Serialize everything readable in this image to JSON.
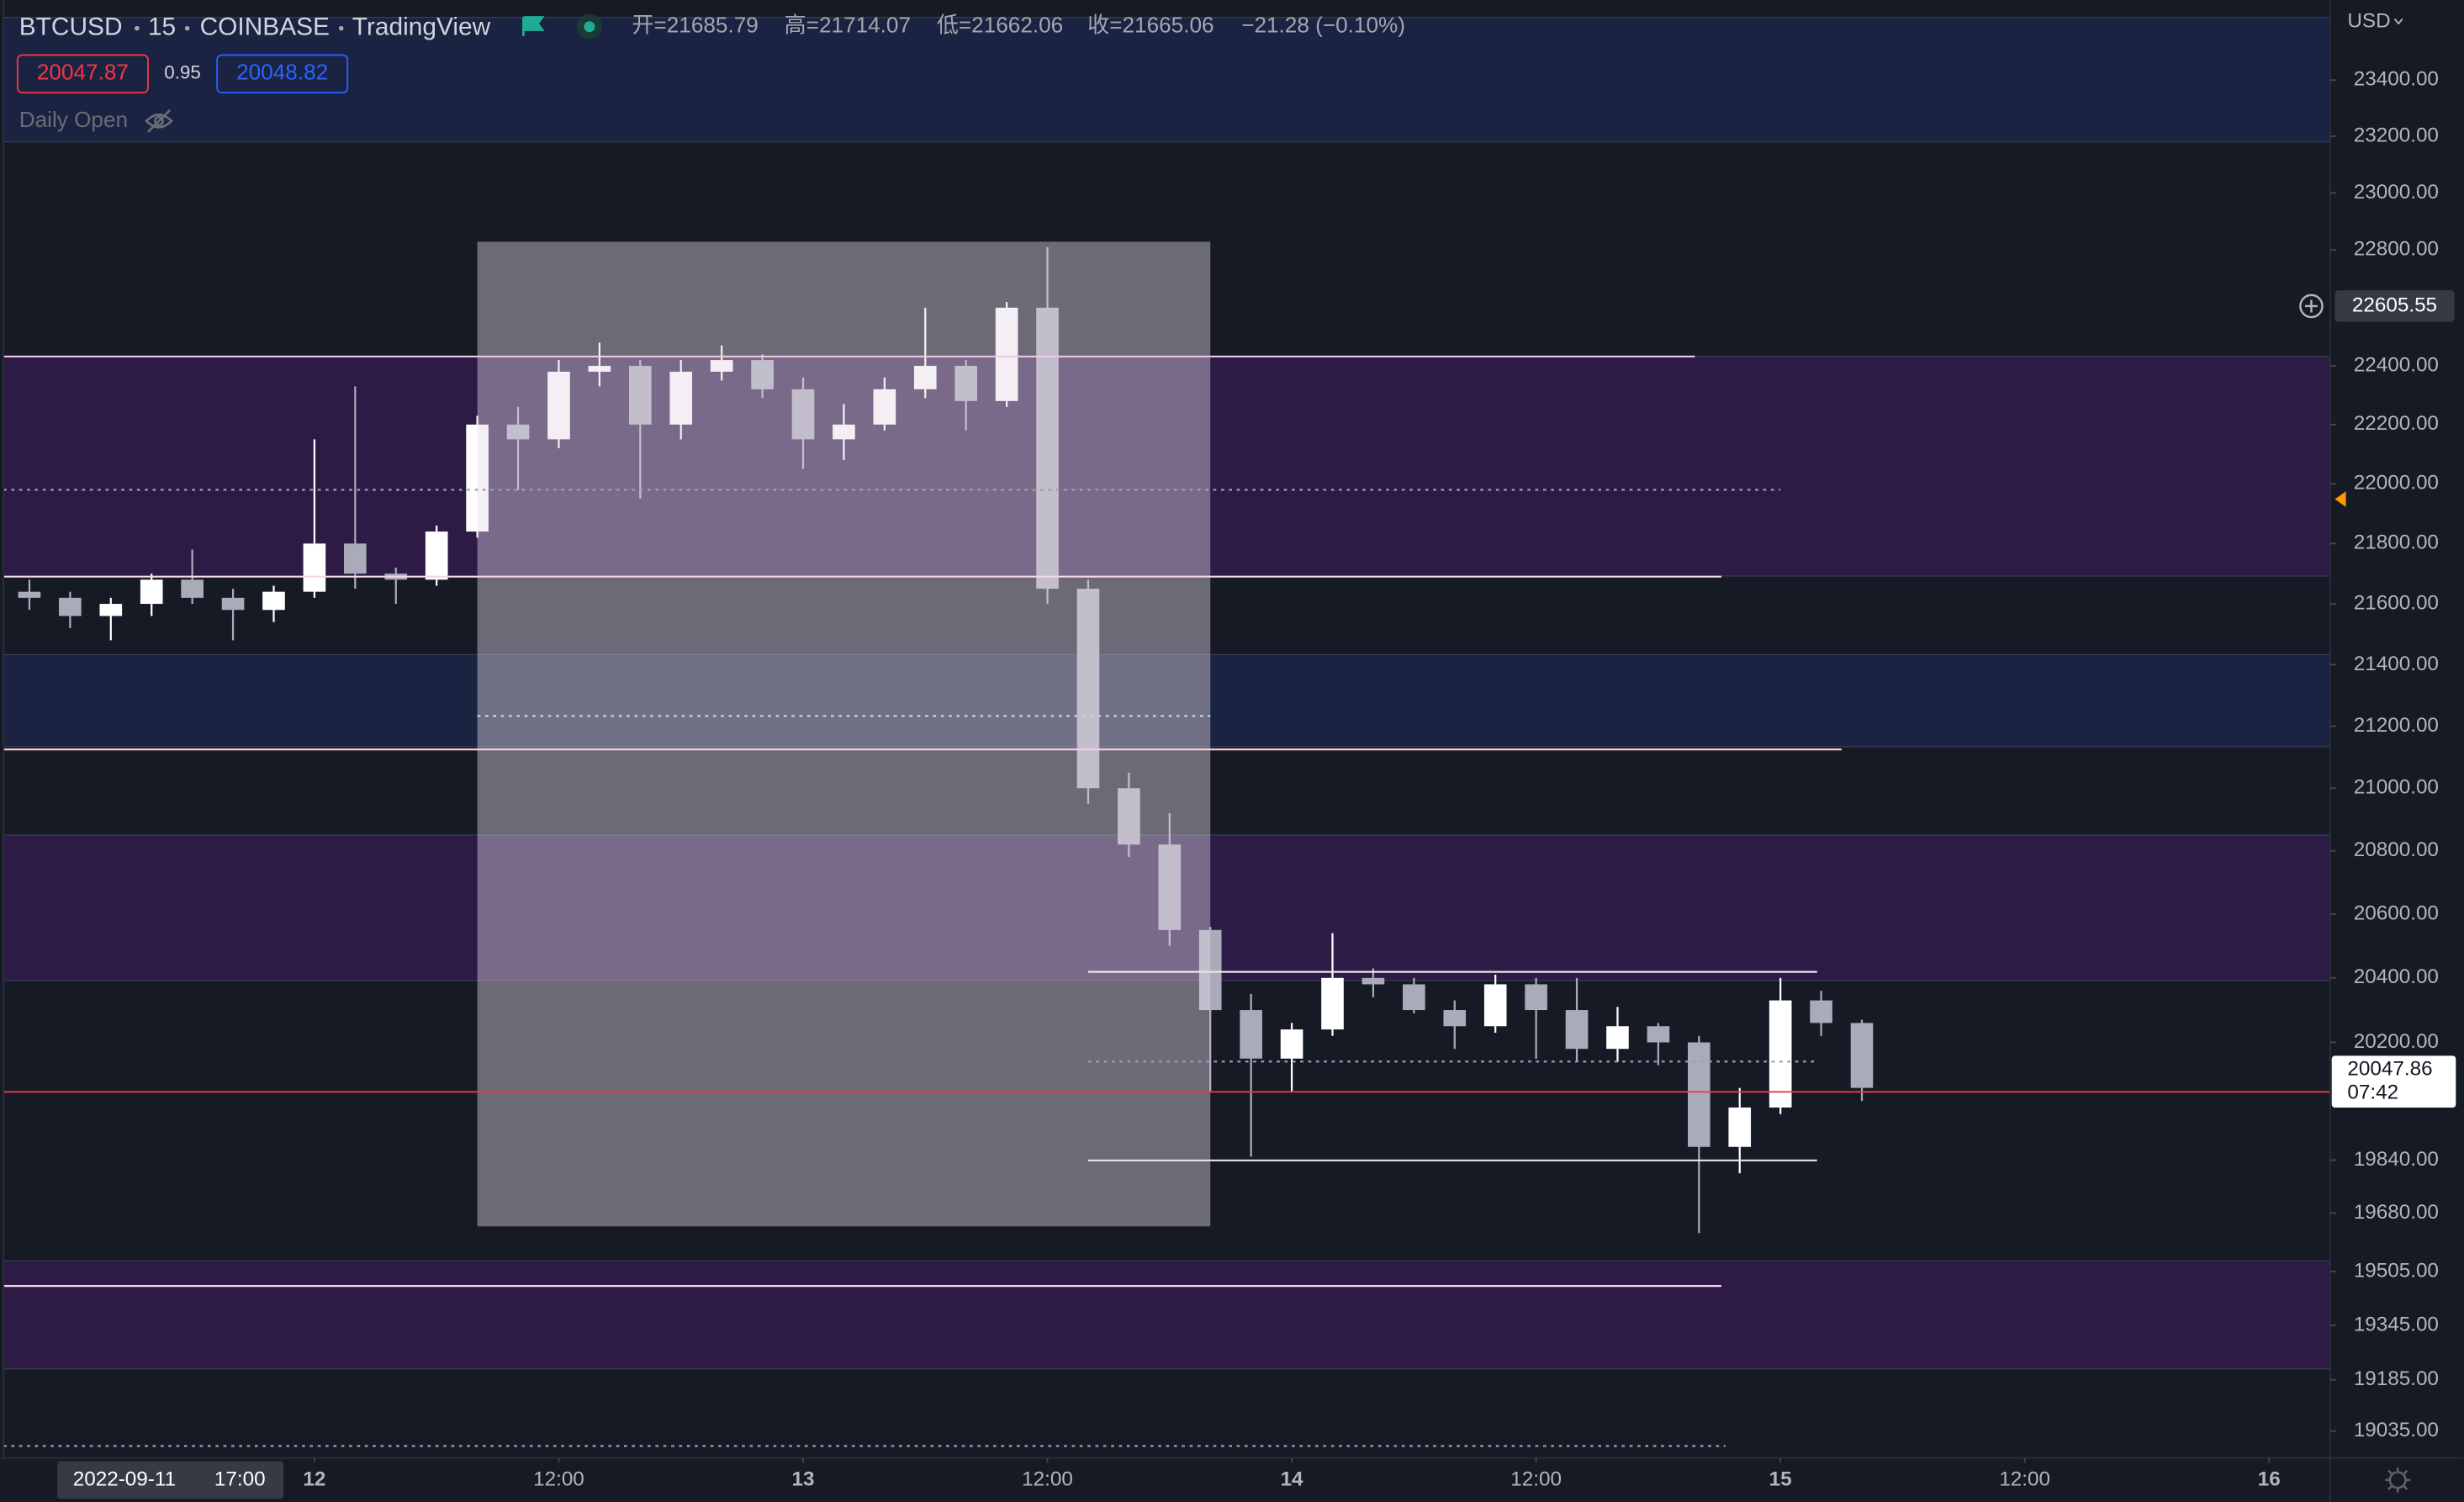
{
  "chart_data": {
    "type": "candlestick",
    "header": {
      "symbol": "BTCUSD",
      "interval": "15",
      "exchange": "COINBASE",
      "source": "TradingView",
      "ohlc": [
        "开=21685.79",
        "高=21714.07",
        "低=21662.06",
        "收=21665.06",
        "−21.28 (−0.10%)"
      ],
      "sell": 20047.87,
      "spread": 0.95,
      "buy": 20048.82,
      "indicator": "Daily Open"
    },
    "currency": "USD",
    "log": true,
    "xlim": [
      8.57,
      123.0
    ],
    "ylim": [
      18957,
      23688
    ],
    "xticks": [
      {
        "value": 24,
        "label": "12"
      },
      {
        "value": 36,
        "label": "12:00"
      },
      {
        "value": 48,
        "label": "13"
      },
      {
        "value": 60,
        "label": "12:00"
      },
      {
        "value": 72,
        "label": "14"
      },
      {
        "value": 84,
        "label": "12:00"
      },
      {
        "value": 96,
        "label": "15"
      },
      {
        "value": 108,
        "label": "12:00"
      },
      {
        "value": 120,
        "label": "16"
      }
    ],
    "yticks": [
      {
        "value": 23400,
        "label": "23400.00"
      },
      {
        "value": 23200,
        "label": "23200.00"
      },
      {
        "value": 23000,
        "label": "23000.00"
      },
      {
        "value": 22800,
        "label": "22800.00"
      },
      {
        "value": 22400,
        "label": "22400.00"
      },
      {
        "value": 22200,
        "label": "22200.00"
      },
      {
        "value": 22000,
        "label": "22000.00"
      },
      {
        "value": 21800,
        "label": "21800.00"
      },
      {
        "value": 21600,
        "label": "21600.00"
      },
      {
        "value": 21400,
        "label": "21400.00"
      },
      {
        "value": 21200,
        "label": "21200.00"
      },
      {
        "value": 21000,
        "label": "21000.00"
      },
      {
        "value": 20800,
        "label": "20800.00"
      },
      {
        "value": 20600,
        "label": "20600.00"
      },
      {
        "value": 20400,
        "label": "20400.00"
      },
      {
        "value": 20200,
        "label": "20200.00"
      },
      {
        "value": 19840,
        "label": "19840.00"
      },
      {
        "value": 19680,
        "label": "19680.00"
      },
      {
        "value": 19505,
        "label": "19505.00"
      },
      {
        "value": 19345,
        "label": "19345.00"
      },
      {
        "value": 19185,
        "label": "19185.00"
      },
      {
        "value": 19035,
        "label": "19035.00"
      }
    ],
    "up_color": "#ffffff",
    "down_color": "#a9abb8",
    "candles": {
      "x": [
        10,
        12,
        14,
        16,
        18,
        20,
        22,
        24,
        26,
        28,
        30,
        32,
        34,
        36,
        38,
        40,
        42,
        44,
        46,
        48,
        50,
        52,
        54,
        56,
        58,
        60,
        62,
        64,
        66,
        68,
        70,
        72,
        74,
        76,
        78,
        80,
        82,
        84,
        86,
        88,
        90,
        92,
        94,
        96,
        98,
        100
      ],
      "open": [
        21640,
        21620,
        21560,
        21600,
        21680,
        21620,
        21580,
        21640,
        21800,
        21700,
        21680,
        21840,
        22200,
        22150,
        22380,
        22400,
        22200,
        22380,
        22420,
        22320,
        22150,
        22200,
        22320,
        22400,
        22280,
        22600,
        21650,
        21000,
        20820,
        20550,
        20300,
        20150,
        20240,
        20400,
        20380,
        20300,
        20250,
        20380,
        20300,
        20180,
        20250,
        20200,
        19880,
        20000,
        20330,
        20260
      ],
      "high": [
        21680,
        21640,
        21620,
        21700,
        21780,
        21650,
        21660,
        22150,
        22330,
        21720,
        21860,
        22230,
        22260,
        22420,
        22480,
        22420,
        22420,
        22470,
        22440,
        22360,
        22270,
        22360,
        22600,
        22420,
        22620,
        22810,
        21680,
        21050,
        20920,
        20560,
        20350,
        20260,
        20540,
        20430,
        20400,
        20330,
        20410,
        20400,
        20400,
        20310,
        20260,
        20220,
        20060,
        20400,
        20360,
        20270
      ],
      "low": [
        21580,
        21520,
        21480,
        21560,
        21600,
        21480,
        21540,
        21620,
        21650,
        21600,
        21660,
        21820,
        21980,
        22120,
        22330,
        21950,
        22150,
        22350,
        22290,
        22050,
        22080,
        22180,
        22290,
        22180,
        22260,
        21600,
        20950,
        20780,
        20500,
        20050,
        19850,
        20050,
        20220,
        20340,
        20290,
        20180,
        20230,
        20150,
        20140,
        20140,
        20130,
        19620,
        19800,
        19980,
        20220,
        20020
      ],
      "close": [
        21620,
        21560,
        21600,
        21680,
        21620,
        21580,
        21640,
        21800,
        21700,
        21680,
        21840,
        22200,
        22150,
        22380,
        22400,
        22200,
        22380,
        22420,
        22320,
        22150,
        22200,
        22320,
        22400,
        22280,
        22600,
        21650,
        21000,
        20820,
        20550,
        20300,
        20150,
        20240,
        20400,
        20380,
        20300,
        20250,
        20380,
        20300,
        20180,
        20250,
        20200,
        19880,
        20000,
        20330,
        20260,
        20060
      ]
    },
    "zones": [
      {
        "from": 23180,
        "to": 23625,
        "color": "#1a2341"
      },
      {
        "from": 21692,
        "to": 22432,
        "color": "#2d1a45"
      },
      {
        "from": 21134,
        "to": 21433,
        "color": "#1a2341"
      },
      {
        "from": 20392,
        "to": 20850,
        "color": "#2d1a45"
      },
      {
        "from": 19217,
        "to": 19537,
        "color": "#2d1a45"
      }
    ],
    "range_box": {
      "from": 19640,
      "to": 22829,
      "x": [
        32,
        68
      ],
      "color": "rgba(228,218,230,0.42)"
    },
    "levels": [
      {
        "value": 22432,
        "x": [
          8.57,
          91.8
        ],
        "color": "#f0c8e6",
        "dashed": false
      },
      {
        "value": 21980,
        "x": [
          8.57,
          96.0
        ],
        "color": "#9aa0b4",
        "dashed": true
      },
      {
        "value": 21690,
        "x": [
          8.57,
          93.1
        ],
        "color": "#f0d8e4",
        "dashed": false
      },
      {
        "value": 21233,
        "x": [
          32,
          68
        ],
        "color": "#c8d4ec",
        "dashed": true
      },
      {
        "value": 21125,
        "x": [
          8.57,
          99.0
        ],
        "color": "#f3d0dc",
        "dashed": false
      },
      {
        "value": 20419,
        "x": [
          62.0,
          97.8
        ],
        "color": "#e6e6ee",
        "dashed": false
      },
      {
        "value": 20141,
        "x": [
          62.0,
          97.8
        ],
        "color": "#9aa0b4",
        "dashed": true
      },
      {
        "value": 19839,
        "x": [
          62.0,
          97.8
        ],
        "color": "#e6e6ee",
        "dashed": false
      },
      {
        "value": 19462,
        "x": [
          8.57,
          93.1
        ],
        "color": "#f0d8e4",
        "dashed": false
      },
      {
        "value": 18992,
        "x": [
          8.57,
          93.3
        ],
        "color": "#9aa0b4",
        "dashed": true
      }
    ],
    "last_price": 20047.86,
    "last_color": "#f23645",
    "countdown": "07:42",
    "crosshair": {
      "price": 22605.55,
      "x": 17,
      "date": "2022-09-11",
      "time": "17:00"
    }
  }
}
